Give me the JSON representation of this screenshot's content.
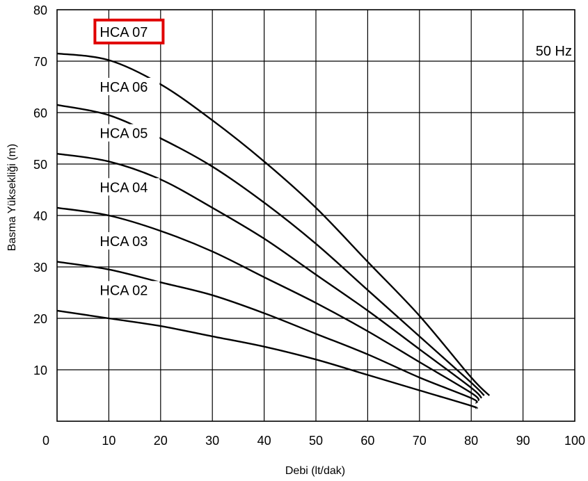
{
  "chart_data": {
    "type": "line",
    "title": "",
    "xlabel": "Debi (lt/dak)",
    "ylabel": "Basma Yüksekliği (m)",
    "xlim": [
      0,
      100
    ],
    "ylim": [
      0,
      80
    ],
    "x_ticks": [
      "0",
      "10",
      "20",
      "30",
      "40",
      "50",
      "60",
      "70",
      "80",
      "90",
      "100"
    ],
    "y_ticks": [
      "10",
      "20",
      "30",
      "40",
      "50",
      "60",
      "70",
      "80"
    ],
    "grid": true,
    "annotation": "50 Hz",
    "highlight": {
      "series": "HCA 07",
      "color": "#e00000"
    },
    "series": [
      {
        "name": "HCA 07",
        "x": [
          0,
          10,
          20,
          30,
          40,
          50,
          60,
          70,
          80,
          83.5
        ],
        "y": [
          71.5,
          70.2,
          65.5,
          58.5,
          50.5,
          41.5,
          31,
          20.5,
          8.5,
          5
        ]
      },
      {
        "name": "HCA 06",
        "x": [
          0,
          10,
          20,
          30,
          40,
          50,
          60,
          70,
          80,
          82.5
        ],
        "y": [
          61.5,
          59.5,
          55,
          49.5,
          42.5,
          34.5,
          25.5,
          16.5,
          7.5,
          5
        ]
      },
      {
        "name": "HCA 05",
        "x": [
          0,
          10,
          20,
          30,
          40,
          50,
          60,
          70,
          80,
          82
        ],
        "y": [
          52,
          50.5,
          47,
          41.5,
          35.5,
          28.5,
          21.5,
          14,
          6.5,
          4.5
        ]
      },
      {
        "name": "HCA 04",
        "x": [
          0,
          10,
          20,
          30,
          40,
          50,
          60,
          70,
          80,
          81.5
        ],
        "y": [
          41.5,
          40,
          37,
          33,
          28,
          23,
          17.5,
          11.5,
          5.5,
          4
        ]
      },
      {
        "name": "HCA 03",
        "x": [
          0,
          10,
          20,
          30,
          40,
          50,
          60,
          70,
          80,
          81
        ],
        "y": [
          31,
          29.5,
          27,
          24.5,
          21,
          17,
          13,
          8.5,
          4.5,
          3.5
        ]
      },
      {
        "name": "HCA 02",
        "x": [
          0,
          10,
          20,
          30,
          40,
          50,
          60,
          70,
          80,
          81
        ],
        "y": [
          21.5,
          20,
          18.5,
          16.5,
          14.5,
          12,
          9,
          6,
          3,
          2.5
        ]
      }
    ]
  }
}
